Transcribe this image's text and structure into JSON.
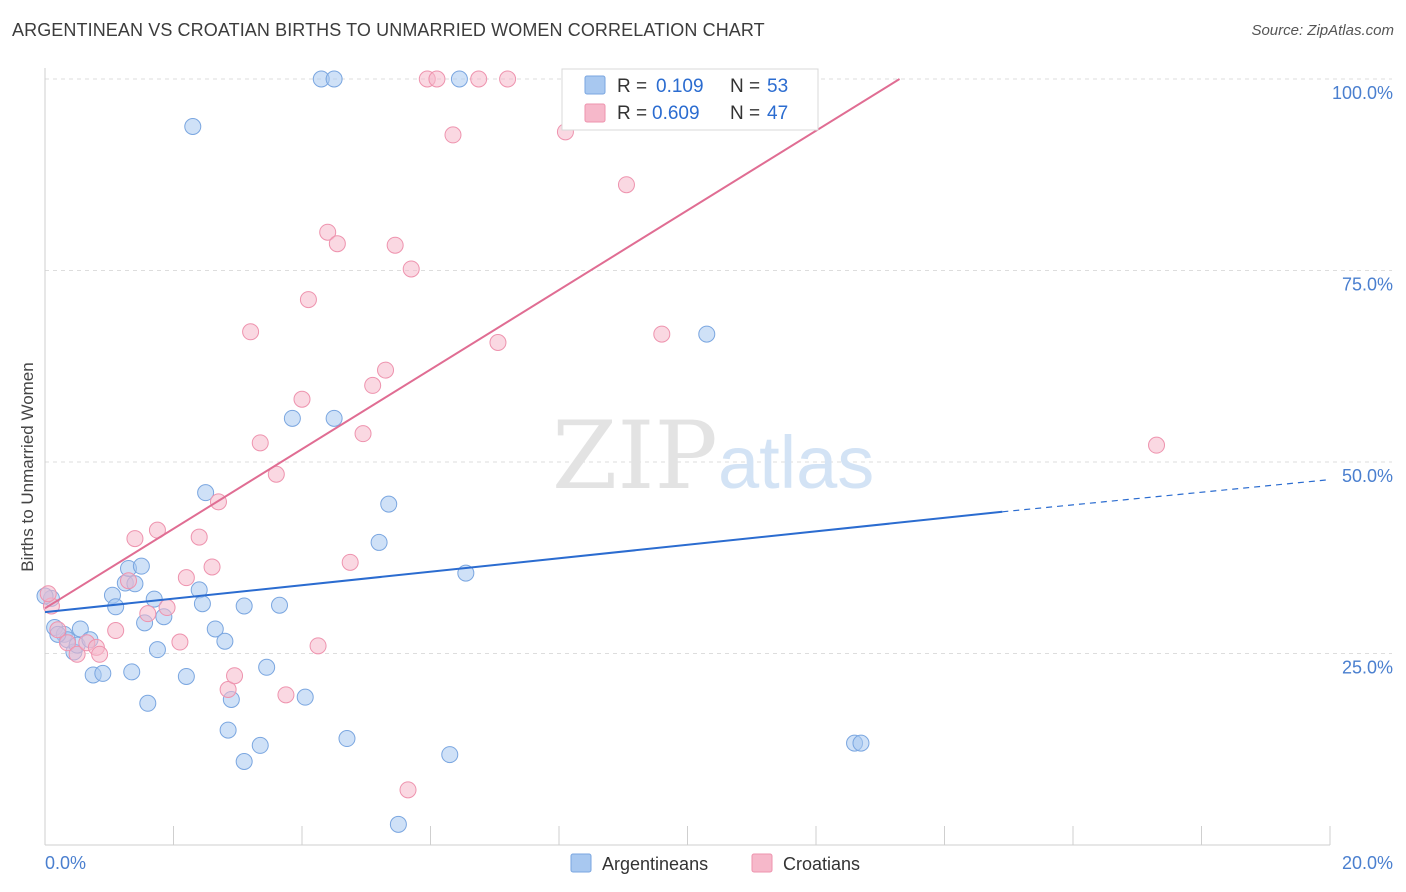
{
  "title": "ARGENTINEAN VS CROATIAN BIRTHS TO UNMARRIED WOMEN CORRELATION CHART",
  "source": "Source: ZipAtlas.com",
  "watermark": {
    "zip": "ZIP",
    "atlas": "atlas"
  },
  "colors": {
    "blue_fill": "#a8c8f0",
    "blue_stroke": "#7aa6e0",
    "blue_line": "#2b6cd0",
    "pink_fill": "#f6b8ca",
    "pink_stroke": "#ee93ae",
    "pink_line": "#e06d93",
    "tick": "#4a7fcf",
    "grid": "#dddddd"
  },
  "legend": {
    "r_label": "R =",
    "n_label": "N =",
    "entries": [
      {
        "r": "0.109",
        "n": "53"
      },
      {
        "r": "0.609",
        "n": "47"
      }
    ]
  },
  "chart_data": {
    "type": "scatter",
    "title": "ARGENTINEAN VS CROATIAN BIRTHS TO UNMARRIED WOMEN CORRELATION CHART",
    "xlabel": "",
    "ylabel": "Births to Unmarried Women",
    "xlim": [
      0,
      20
    ],
    "ylim": [
      0,
      100
    ],
    "x_tick_labels": [
      "0.0%",
      "20.0%"
    ],
    "y_tick_labels": [
      "25.0%",
      "50.0%",
      "75.0%",
      "100.0%"
    ],
    "y_ticks": [
      25,
      50,
      75,
      100
    ],
    "grid": "horizontal dashed",
    "series": [
      {
        "name": "Argentineans",
        "r": 0.109,
        "n": 53,
        "trend": {
          "x0": 0,
          "y0": 30.4,
          "x1": 14.9,
          "y1": 43.5,
          "dashed_to_x": 20,
          "dashed_to_y": 47.7
        },
        "points": [
          [
            0.1,
            32.2
          ],
          [
            0.15,
            28.4
          ],
          [
            0.3,
            27.5
          ],
          [
            0.35,
            26.8
          ],
          [
            0.45,
            25.2
          ],
          [
            0.5,
            26.1
          ],
          [
            0.55,
            28.2
          ],
          [
            0.7,
            26.8
          ],
          [
            0.75,
            22.2
          ],
          [
            0.9,
            22.4
          ],
          [
            1.05,
            32.6
          ],
          [
            1.1,
            31.1
          ],
          [
            1.25,
            34.2
          ],
          [
            1.3,
            36.1
          ],
          [
            1.35,
            22.6
          ],
          [
            1.4,
            34.1
          ],
          [
            1.5,
            36.4
          ],
          [
            1.55,
            29.0
          ],
          [
            1.6,
            18.5
          ],
          [
            1.7,
            32.1
          ],
          [
            1.75,
            25.5
          ],
          [
            1.85,
            29.8
          ],
          [
            2.2,
            22.0
          ],
          [
            2.3,
            93.8
          ],
          [
            2.4,
            33.3
          ],
          [
            2.45,
            31.5
          ],
          [
            2.5,
            46.0
          ],
          [
            2.65,
            28.2
          ],
          [
            2.8,
            26.6
          ],
          [
            2.85,
            15.0
          ],
          [
            2.9,
            19.0
          ],
          [
            3.1,
            10.9
          ],
          [
            3.1,
            31.2
          ],
          [
            3.35,
            13.0
          ],
          [
            3.45,
            23.2
          ],
          [
            3.65,
            31.3
          ],
          [
            3.85,
            55.7
          ],
          [
            4.05,
            19.3
          ],
          [
            4.3,
            100
          ],
          [
            4.5,
            100
          ],
          [
            4.5,
            55.7
          ],
          [
            4.7,
            13.9
          ],
          [
            5.2,
            39.5
          ],
          [
            5.35,
            44.5
          ],
          [
            5.5,
            2.7
          ],
          [
            6.3,
            11.8
          ],
          [
            6.45,
            100
          ],
          [
            6.55,
            35.5
          ],
          [
            10.3,
            66.7
          ],
          [
            12.6,
            13.3
          ],
          [
            12.7,
            13.3
          ],
          [
            0.0,
            32.5
          ],
          [
            0.2,
            27.5
          ]
        ]
      },
      {
        "name": "Croatians",
        "r": 0.609,
        "n": 47,
        "trend": {
          "x0": 0,
          "y0": 30.9,
          "x1": 13.3,
          "y1": 100
        },
        "points": [
          [
            0.1,
            31.2
          ],
          [
            0.2,
            28.1
          ],
          [
            0.35,
            26.4
          ],
          [
            0.5,
            24.9
          ],
          [
            0.65,
            26.4
          ],
          [
            0.8,
            25.8
          ],
          [
            0.85,
            24.9
          ],
          [
            1.1,
            28.0
          ],
          [
            1.3,
            34.5
          ],
          [
            1.4,
            40.0
          ],
          [
            1.6,
            30.2
          ],
          [
            1.75,
            41.1
          ],
          [
            1.9,
            31.0
          ],
          [
            2.1,
            26.5
          ],
          [
            2.2,
            34.9
          ],
          [
            2.4,
            40.2
          ],
          [
            2.6,
            36.3
          ],
          [
            2.7,
            44.8
          ],
          [
            2.85,
            20.3
          ],
          [
            2.95,
            22.1
          ],
          [
            3.2,
            67.0
          ],
          [
            3.35,
            52.5
          ],
          [
            3.6,
            48.4
          ],
          [
            3.75,
            19.6
          ],
          [
            4.0,
            58.2
          ],
          [
            4.1,
            71.2
          ],
          [
            4.25,
            26.0
          ],
          [
            4.4,
            80.0
          ],
          [
            4.55,
            78.5
          ],
          [
            4.75,
            36.9
          ],
          [
            4.95,
            53.7
          ],
          [
            5.1,
            60.0
          ],
          [
            5.3,
            62.0
          ],
          [
            5.45,
            78.3
          ],
          [
            5.65,
            7.2
          ],
          [
            5.7,
            75.2
          ],
          [
            5.95,
            100
          ],
          [
            6.1,
            100
          ],
          [
            6.35,
            92.7
          ],
          [
            6.75,
            100
          ],
          [
            7.2,
            100
          ],
          [
            7.05,
            65.6
          ],
          [
            8.1,
            93.1
          ],
          [
            9.05,
            86.2
          ],
          [
            9.6,
            66.7
          ],
          [
            17.3,
            52.2
          ],
          [
            0.05,
            32.8
          ]
        ]
      }
    ]
  },
  "bottom_legend": [
    "Argentineans",
    "Croatians"
  ]
}
